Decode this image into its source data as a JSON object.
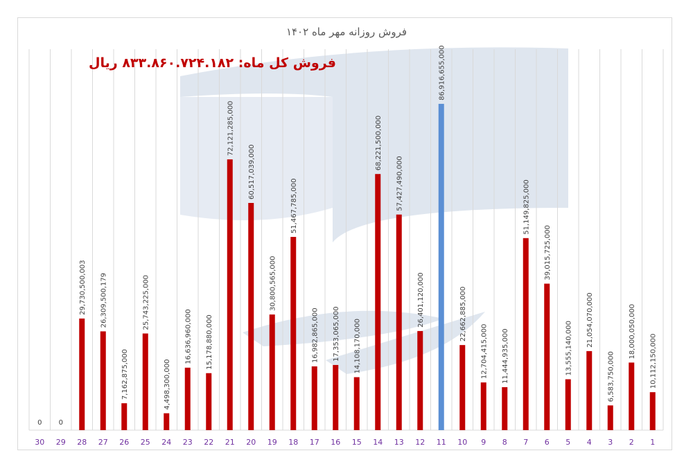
{
  "chart_data": {
    "type": "bar",
    "title": "فروش روزانه مهر ماه ۱۴۰۲",
    "annotation": "فروش کل ماه: ۸۳۳.۸۶۰.۷۲۴.۱۸۲ ریال",
    "xlabel": "",
    "ylabel": "",
    "ylim": [
      0,
      100000000000
    ],
    "x_axis_direction": "right-to-left",
    "grid": "vertical lines between categories",
    "categories": [
      "1",
      "2",
      "3",
      "4",
      "5",
      "6",
      "7",
      "8",
      "9",
      "10",
      "11",
      "12",
      "13",
      "14",
      "15",
      "16",
      "17",
      "18",
      "19",
      "20",
      "21",
      "22",
      "23",
      "24",
      "25",
      "26",
      "27",
      "28",
      "29",
      "30"
    ],
    "values": [
      10112150000,
      18000050000,
      6583750000,
      21054070000,
      13555140000,
      39015725000,
      51149825000,
      11444935000,
      12704415000,
      22662885000,
      86916655000,
      26401120000,
      57427490000,
      68221500000,
      14108170000,
      17353065000,
      16982865000,
      51467785000,
      30800565000,
      60517039000,
      72121285000,
      15178880000,
      16636960000,
      4498300000,
      25743225000,
      7162875000,
      26309500179,
      29730500003,
      0,
      0
    ],
    "data_labels": [
      "10,112,150,000",
      "18,000,050,000",
      "6,583,750,000",
      "21,054,070,000",
      "13,555,140,000",
      "39,015,725,000",
      "51,149,825,000",
      "11,444,935,000",
      "12,704,415,000",
      "22,662,885,000",
      "86,916,655,000",
      "26,401,120,000",
      "57,427,490,000",
      "68,221,500,000",
      "14,108,170,000",
      "17,353,065,000",
      "16,982,865,000",
      "51,467,785,000",
      "30,800,565,000",
      "60,517,039,000",
      "72,121,285,000",
      "15,178,880,000",
      "16,636,960,000",
      "4,498,300,000",
      "25,743,225,000",
      "7,162,875,000",
      "26,309,500,179",
      "29,730,500,003",
      "0",
      "0"
    ],
    "highlight_category": "11",
    "colors": {
      "bar": "#c00000",
      "highlight": "#5b8fd4",
      "tick_label": "#7030a0",
      "grid": "#d9d9d9",
      "title": "#595959",
      "annotation": "#c00000"
    }
  }
}
